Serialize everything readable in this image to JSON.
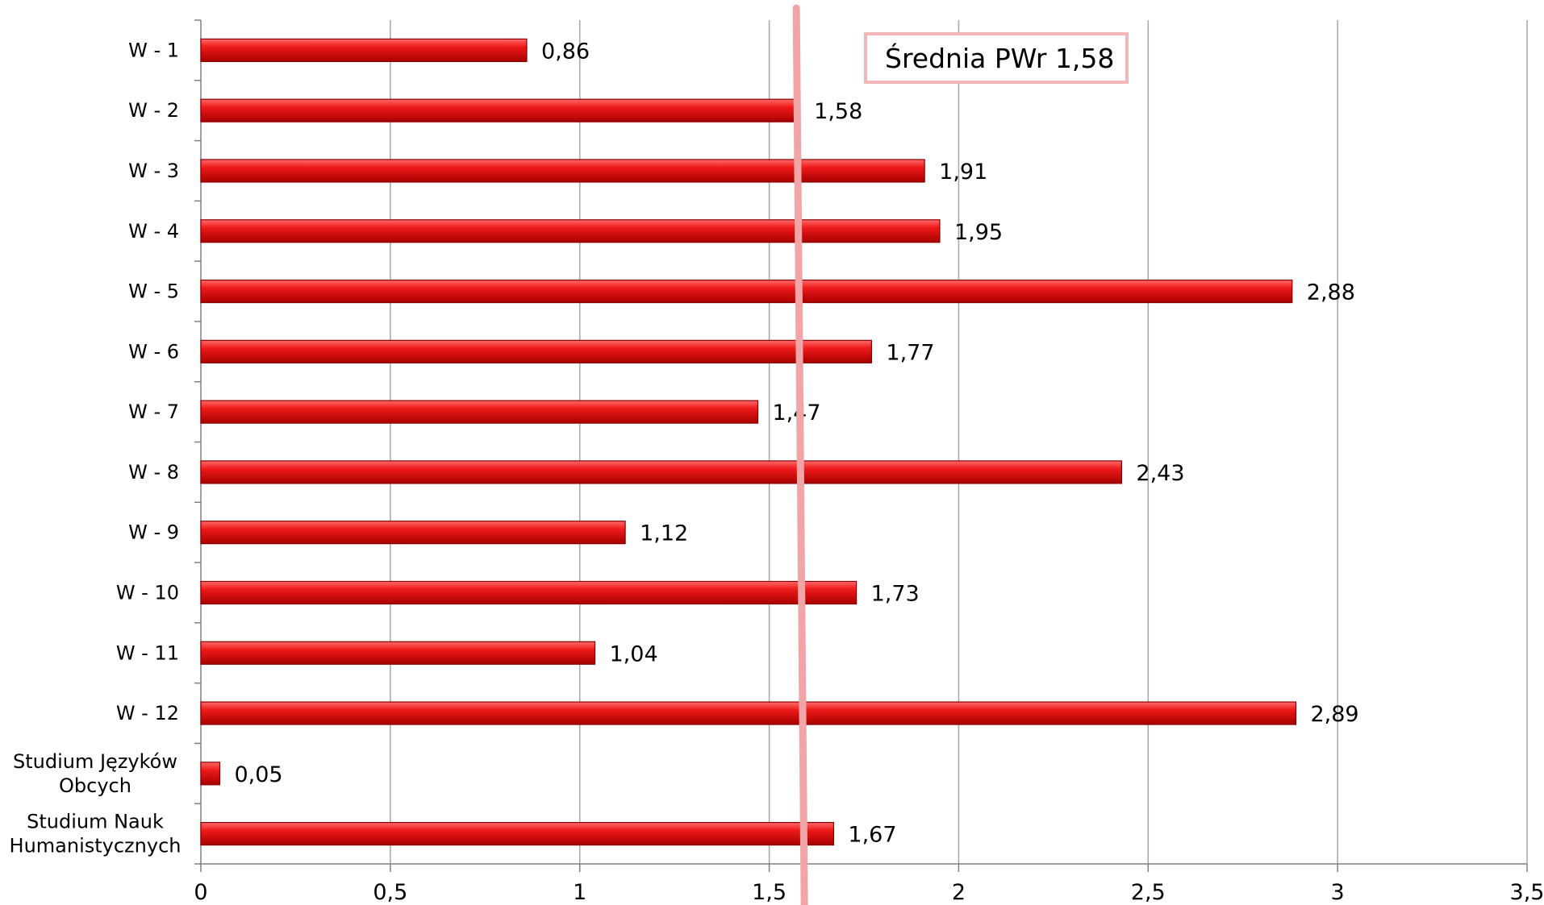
{
  "chart_data": {
    "type": "bar",
    "orientation": "horizontal",
    "categories": [
      "W - 1",
      "W - 2",
      "W - 3",
      "W - 4",
      "W - 5",
      "W - 6",
      "W - 7",
      "W - 8",
      "W - 9",
      "W - 10",
      "W - 11",
      "W - 12",
      "Studium Języków Obcych",
      "Studium Nauk Humanistycznych"
    ],
    "values": [
      0.86,
      1.58,
      1.91,
      1.95,
      2.88,
      1.77,
      1.47,
      2.43,
      1.12,
      1.73,
      1.04,
      2.89,
      0.05,
      1.67
    ],
    "value_labels": [
      "0,86",
      "1,58",
      "1,91",
      "1,95",
      "2,88",
      "1,77",
      "1,47",
      "2,43",
      "1,12",
      "1,73",
      "1,04",
      "2,89",
      "0,05",
      "1,67"
    ],
    "xlim": [
      0,
      3.5
    ],
    "x_ticks": [
      0,
      0.5,
      1,
      1.5,
      2,
      2.5,
      3,
      3.5
    ],
    "x_tick_labels": [
      "0",
      "0,5",
      "1",
      "1,5",
      "2",
      "2,5",
      "3",
      "3,5"
    ],
    "grid": true,
    "reference_line": {
      "value": 1.58,
      "label": "Średnia PWr 1,58",
      "color": "#f2a5a6"
    },
    "bar_color": "#e8141c",
    "bar_edge_color": "#8a0000"
  }
}
